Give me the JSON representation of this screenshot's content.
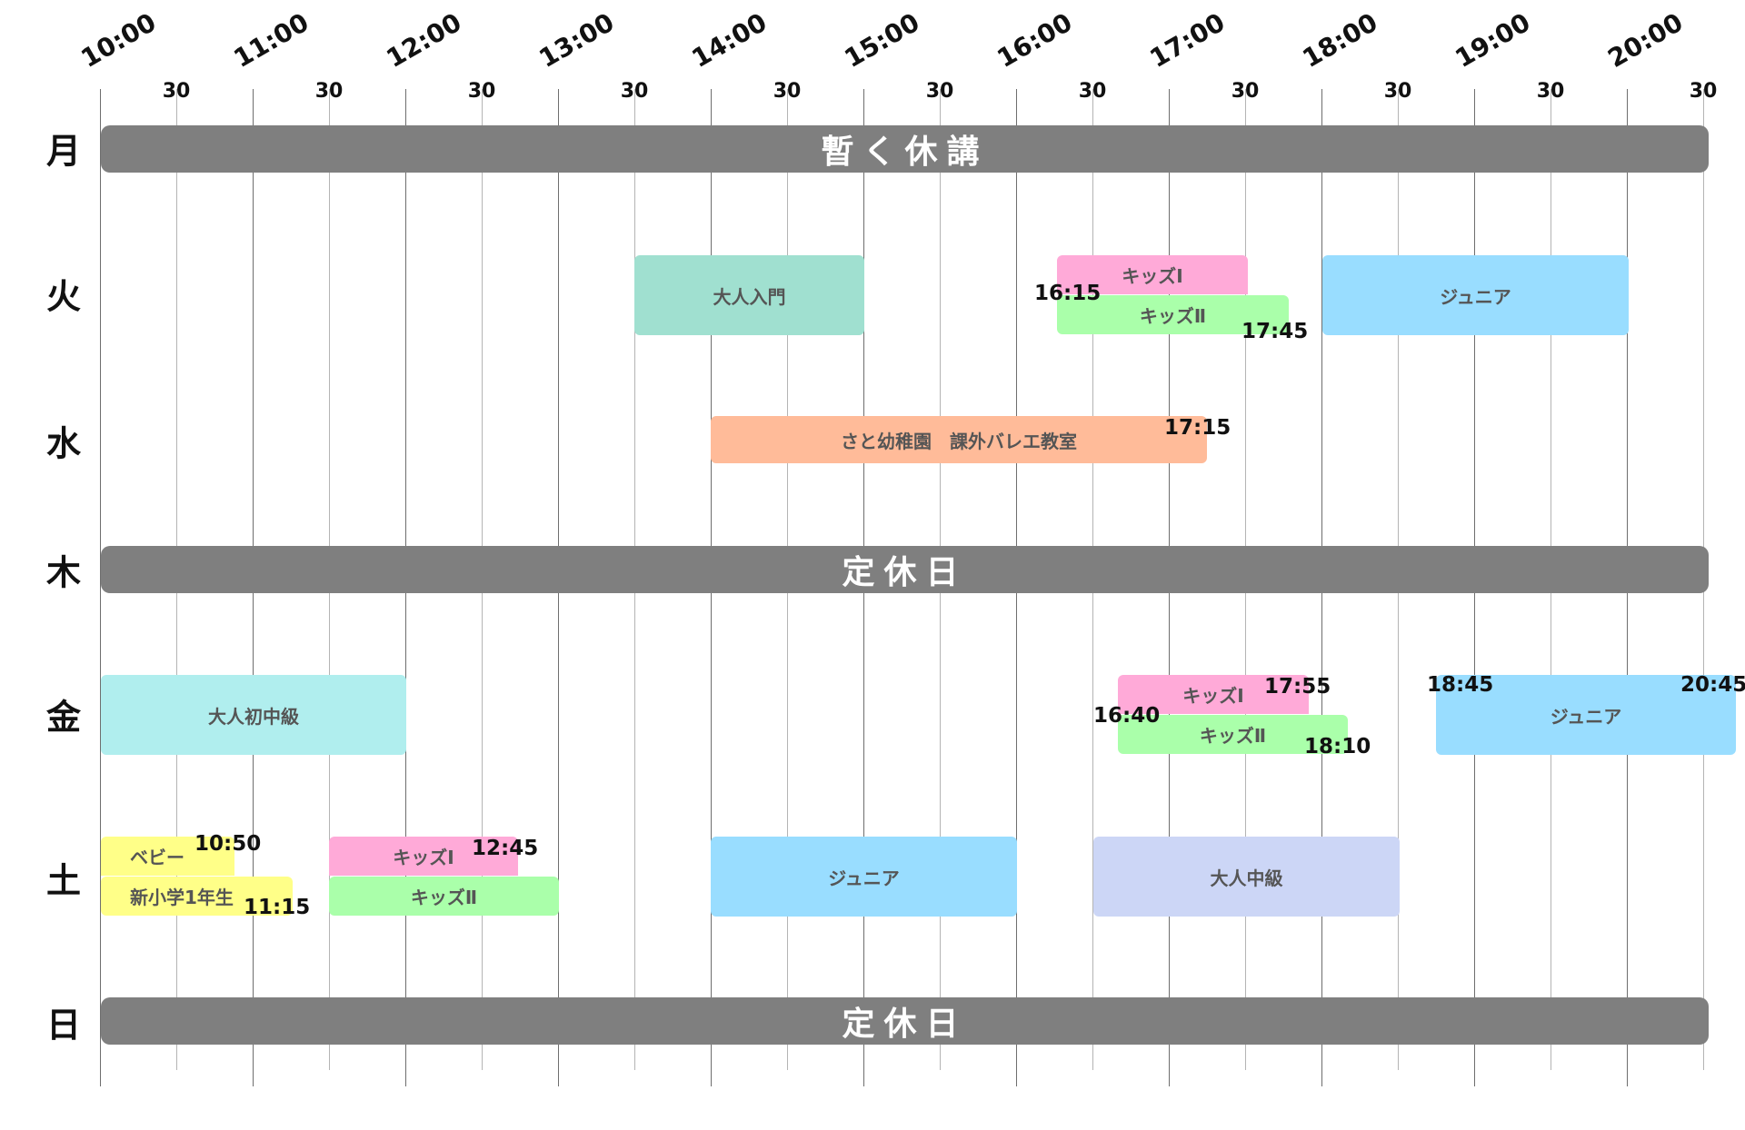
{
  "timeline": {
    "hour_labels": [
      "10:00",
      "11:00",
      "12:00",
      "13:00",
      "14:00",
      "15:00",
      "16:00",
      "17:00",
      "18:00",
      "19:00",
      "20:00"
    ],
    "half_label": "30"
  },
  "days": {
    "mon": "月",
    "tue": "火",
    "wed": "水",
    "thu": "木",
    "fri": "金",
    "sat": "土",
    "sun": "日"
  },
  "closed": {
    "mon": "暫く休講",
    "thu": "定休日",
    "sun": "定休日"
  },
  "colors": {
    "closed": "#7f7f7f",
    "kids1": "#ffaad8",
    "kids2": "#aaffaa",
    "junior": "#99ddff",
    "adult_intro": "#a0e0d0",
    "kindergarten": "#ffbb99",
    "adult_beg_mid": "#b0eeee",
    "baby": "#ffff88",
    "adult_mid": "#ccd6f6"
  },
  "classes": {
    "tue": {
      "adult_intro": "大人入門",
      "kids1": "キッズⅠ",
      "kids2": "キッズⅡ",
      "junior": "ジュニア",
      "t_kids_start": "16:15",
      "t_kids2_end": "17:45"
    },
    "wed": {
      "kindergarten": "さと幼稚園　課外バレエ教室",
      "t_end": "17:15"
    },
    "fri": {
      "adult_beg_mid": "大人初中級",
      "kids1": "キッズⅠ",
      "kids2": "キッズⅡ",
      "junior": "ジュニア",
      "t_kids1_end": "17:55",
      "t_kids_start": "16:40",
      "t_kids2_end": "18:10",
      "t_junior_start": "18:45",
      "t_junior_end": "20:45"
    },
    "sat": {
      "baby": "ベビー",
      "grade1": "新小学1年生",
      "kids1": "キッズⅠ",
      "kids2": "キッズⅡ",
      "junior": "ジュニア",
      "adult_mid": "大人中級",
      "t_baby_end": "10:50",
      "t_grade1_end": "11:15",
      "t_kids1_end": "12:45"
    }
  }
}
